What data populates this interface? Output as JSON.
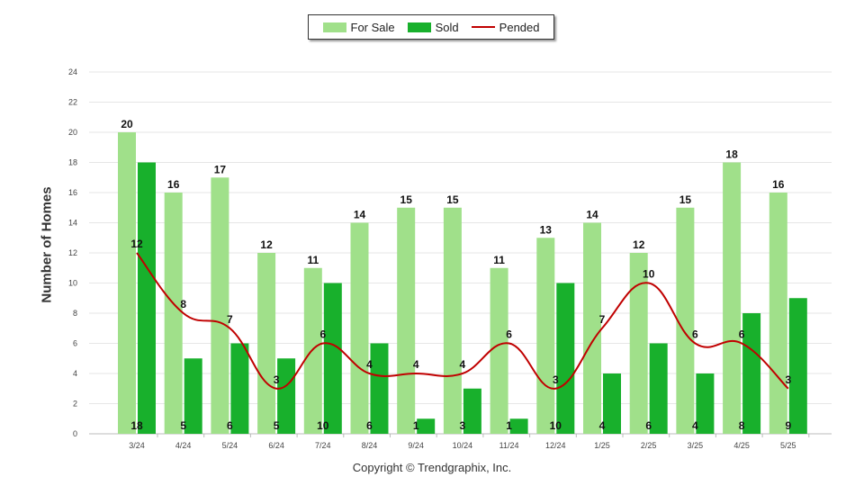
{
  "legend": {
    "for_sale": "For Sale",
    "sold": "Sold",
    "pended": "Pended"
  },
  "footer": {
    "copyright": "Copyright © Trendgraphix, Inc."
  },
  "colors": {
    "for_sale": "#a0e08a",
    "sold": "#18b02c",
    "pended": "#c00000",
    "grid": "#e6e6e6"
  },
  "chart_data": {
    "type": "bar",
    "ylabel": "Number of Homes",
    "ylim": [
      0,
      24
    ],
    "yticks": [
      0,
      2,
      4,
      6,
      8,
      10,
      12,
      14,
      16,
      18,
      20,
      22,
      24
    ],
    "grid": true,
    "legend_position": "top-center",
    "categories": [
      "3/24",
      "4/24",
      "5/24",
      "6/24",
      "7/24",
      "8/24",
      "9/24",
      "10/24",
      "11/24",
      "12/24",
      "1/25",
      "2/25",
      "3/25",
      "4/25",
      "5/25"
    ],
    "series": [
      {
        "name": "For Sale",
        "type": "bar",
        "values": [
          20,
          16,
          17,
          12,
          11,
          14,
          15,
          15,
          11,
          13,
          14,
          12,
          15,
          18,
          16
        ]
      },
      {
        "name": "Sold",
        "type": "bar",
        "values": [
          18,
          5,
          6,
          5,
          10,
          6,
          1,
          3,
          1,
          10,
          4,
          6,
          4,
          8,
          9
        ]
      },
      {
        "name": "Pended",
        "type": "line",
        "values": [
          12,
          8,
          7,
          3,
          6,
          4,
          4,
          4,
          6,
          3,
          7,
          10,
          6,
          6,
          3
        ]
      }
    ]
  }
}
